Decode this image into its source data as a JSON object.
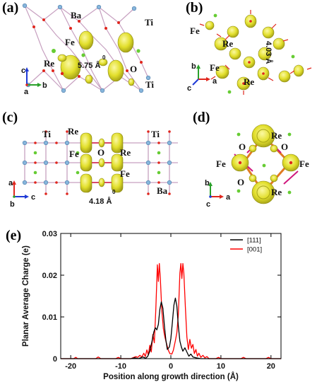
{
  "panels": {
    "a": {
      "label": "(a)",
      "atoms": {
        "ba": "Ba",
        "ti_top": "Ti",
        "fe": "Fe",
        "re": "Re",
        "o": "O",
        "ti_bottom": "Ti"
      },
      "distance": "5.75 Å",
      "distance_sup": "0",
      "axes": {
        "c": "c",
        "a": "a",
        "b": "b"
      }
    },
    "b": {
      "label": "(b)",
      "atoms": {
        "fe_top": "Fe",
        "re_top": "Re",
        "fe_mid": "Fe",
        "re_bottom": "Re"
      },
      "distance": "4.03 Å",
      "axes": {
        "b": "b",
        "c": "c",
        "a": "a"
      }
    },
    "c": {
      "label": "(c)",
      "atoms": {
        "ti_left": "Ti",
        "re_top": "Re",
        "ti_right": "Ti",
        "fe_left": "Fe",
        "o": "O",
        "re_right": "Re",
        "fe_right": "Fe",
        "ba": "Ba"
      },
      "distance": "4.18 Å",
      "distance_sup": "0",
      "axes": {
        "a": "a",
        "b": "b",
        "c": "c"
      }
    },
    "d": {
      "label": "(d)",
      "atoms": {
        "re_top": "Re",
        "o_left": "O",
        "o_right": "O",
        "fe_left": "Fe",
        "fe_right": "Fe",
        "o_bottom": "O",
        "re_bottom": "Re"
      },
      "axes": {
        "b": "b",
        "c": "c",
        "a": "a"
      }
    },
    "e": {
      "label": "(e)"
    }
  },
  "colors": {
    "isosurface": "#e2df2c",
    "isosurface_dark": "#a6a317",
    "ti": "#87b6dc",
    "o": "#e0261d",
    "ba": "#66cc33",
    "bond": "#c7a0c0",
    "fe_re_bond": "#e07b22",
    "series_111": "#000000",
    "series_001": "#ff0000"
  },
  "chart_data": {
    "type": "line",
    "xlabel": "Position along growth direction (Å)",
    "ylabel": "Planar Average Charge (e)",
    "xlim": [
      -22,
      22
    ],
    "ylim": [
      0,
      0.03
    ],
    "xticks": [
      -20,
      -10,
      0,
      10,
      20
    ],
    "yticks": [
      0,
      0.01,
      0.02,
      0.03
    ],
    "xtick_labels": [
      "-20",
      "-10",
      "0",
      "10",
      "20"
    ],
    "ytick_labels": [
      "0",
      "0.01",
      "0.02",
      "0.03"
    ],
    "legend_position": "top-right",
    "series": [
      {
        "name": "[111]",
        "color": "#000000",
        "points": [
          [
            -22,
            0
          ],
          [
            -10,
            0
          ],
          [
            -8,
            0
          ],
          [
            -7.2,
            0.0002
          ],
          [
            -6.5,
            0
          ],
          [
            -5.6,
            0.0004
          ],
          [
            -5,
            0.0001
          ],
          [
            -4.6,
            0.0006
          ],
          [
            -4.2,
            0.0018
          ],
          [
            -3.8,
            0.004
          ],
          [
            -3.4,
            0.0064
          ],
          [
            -3.1,
            0.0074
          ],
          [
            -2.8,
            0.0069
          ],
          [
            -2.5,
            0.0082
          ],
          [
            -2.2,
            0.0118
          ],
          [
            -1.9,
            0.0136
          ],
          [
            -1.6,
            0.0121
          ],
          [
            -1.3,
            0.008
          ],
          [
            -1,
            0.0045
          ],
          [
            -0.7,
            0.0022
          ],
          [
            -0.3,
            0.0028
          ],
          [
            0,
            0.0048
          ],
          [
            0.3,
            0.0086
          ],
          [
            0.6,
            0.0128
          ],
          [
            0.9,
            0.0145
          ],
          [
            1.2,
            0.0126
          ],
          [
            1.5,
            0.0078
          ],
          [
            1.8,
            0.0042
          ],
          [
            2.1,
            0.0028
          ],
          [
            2.4,
            0.0018
          ],
          [
            2.8,
            0.0026
          ],
          [
            3.2,
            0.0016
          ],
          [
            3.6,
            0.0006
          ],
          [
            4,
            0.0011
          ],
          [
            4.4,
            0.0004
          ],
          [
            5,
            0.0002
          ],
          [
            6,
            0
          ],
          [
            8,
            0
          ],
          [
            22,
            0
          ]
        ]
      },
      {
        "name": "[001]",
        "color": "#ff0000",
        "points": [
          [
            -22,
            0
          ],
          [
            -19.4,
            0
          ],
          [
            -19,
            0.0003
          ],
          [
            -18.6,
            0
          ],
          [
            -15,
            0
          ],
          [
            -14.5,
            0.0004
          ],
          [
            -14,
            0
          ],
          [
            -11,
            0
          ],
          [
            -10.5,
            0.0003
          ],
          [
            -10,
            0
          ],
          [
            -8,
            0
          ],
          [
            -7.4,
            0.0003
          ],
          [
            -7,
            0.0005
          ],
          [
            -6.6,
            0.0003
          ],
          [
            -6.2,
            0.0008
          ],
          [
            -5.8,
            0.0004
          ],
          [
            -5.4,
            0.0013
          ],
          [
            -5.1,
            0.0005
          ],
          [
            -4.8,
            0.0021
          ],
          [
            -4.5,
            0.0009
          ],
          [
            -4.2,
            0.0032
          ],
          [
            -3.9,
            0.0016
          ],
          [
            -3.6,
            0.0058
          ],
          [
            -3.3,
            0.0038
          ],
          [
            -3,
            0.0118
          ],
          [
            -2.7,
            0.0225
          ],
          [
            -2.5,
            0.0185
          ],
          [
            -2.3,
            0.0228
          ],
          [
            -2.1,
            0.0192
          ],
          [
            -1.8,
            0.0115
          ],
          [
            -1.5,
            0.0072
          ],
          [
            -1.2,
            0.0052
          ],
          [
            -0.9,
            0.0038
          ],
          [
            -0.5,
            0.002
          ],
          [
            -0.2,
            0.0012
          ],
          [
            0.2,
            0.0011
          ],
          [
            0.5,
            0.002
          ],
          [
            0.9,
            0.0043
          ],
          [
            1.2,
            0.0062
          ],
          [
            1.5,
            0.0105
          ],
          [
            1.8,
            0.0205
          ],
          [
            2,
            0.0228
          ],
          [
            2.2,
            0.0192
          ],
          [
            2.4,
            0.0228
          ],
          [
            2.6,
            0.0205
          ],
          [
            2.9,
            0.0122
          ],
          [
            3.2,
            0.0052
          ],
          [
            3.5,
            0.0022
          ],
          [
            3.8,
            0.0046
          ],
          [
            4.1,
            0.0025
          ],
          [
            4.4,
            0.0034
          ],
          [
            4.7,
            0.0012
          ],
          [
            5,
            0.0022
          ],
          [
            5.3,
            0.0006
          ],
          [
            5.6,
            0.0013
          ],
          [
            6,
            0.0003
          ],
          [
            6.4,
            0.0008
          ],
          [
            6.8,
            0.0002
          ],
          [
            7.2,
            0.0005
          ],
          [
            7.6,
            0
          ],
          [
            9,
            0
          ],
          [
            9.5,
            0.0003
          ],
          [
            10,
            0
          ],
          [
            14,
            0
          ],
          [
            14.5,
            0.0003
          ],
          [
            15,
            0
          ],
          [
            19,
            0
          ],
          [
            19.5,
            0.0003
          ],
          [
            20,
            0
          ],
          [
            22,
            0
          ]
        ]
      }
    ]
  }
}
